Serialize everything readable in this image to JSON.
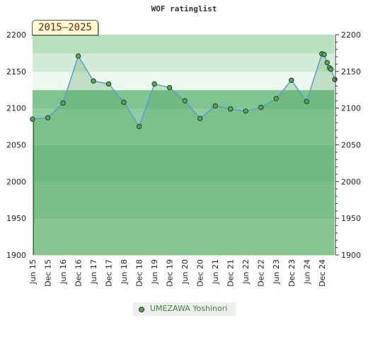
{
  "chart_data": {
    "type": "line",
    "title": "WOF ratinglist",
    "period_label": "2015–2025",
    "xlabel": "",
    "ylabel": "",
    "ylim": [
      1900,
      2200
    ],
    "y_ticks": [
      1900,
      1950,
      2000,
      2050,
      2100,
      2150,
      2200
    ],
    "x_tick_labels": [
      "Jun 15",
      "Dec 15",
      "Jun 16",
      "Dec 16",
      "Jun 17",
      "Dec 17",
      "Jun 18",
      "Dec 18",
      "Jun 19",
      "Dec 19",
      "Jun 20",
      "Dec 20",
      "Jun 21",
      "Dec 21",
      "Jun 22",
      "Dec 22",
      "Jun 23",
      "Dec 23",
      "Jun 24",
      "Dec 24"
    ],
    "x_range": [
      0,
      19.8
    ],
    "grid": true,
    "legend_position": "bottom",
    "series": [
      {
        "name": "UMEZAWA Yoshinori",
        "color": "#5aa55a",
        "line_color": "#5b9bd5",
        "x": [
          0,
          1,
          2,
          3,
          4,
          5,
          6,
          7,
          8,
          9,
          10,
          11,
          12,
          13,
          14,
          15,
          16,
          17,
          18,
          19,
          19.15,
          19.35,
          19.5,
          19.6,
          19.85
        ],
        "values": [
          2085,
          2087,
          2107,
          2171,
          2137,
          2133,
          2108,
          2075,
          2133,
          2128,
          2110,
          2086,
          2103,
          2099,
          2096,
          2101,
          2113,
          2138,
          2109,
          2174,
          2173,
          2162,
          2155,
          2153,
          2139
        ]
      }
    ]
  }
}
